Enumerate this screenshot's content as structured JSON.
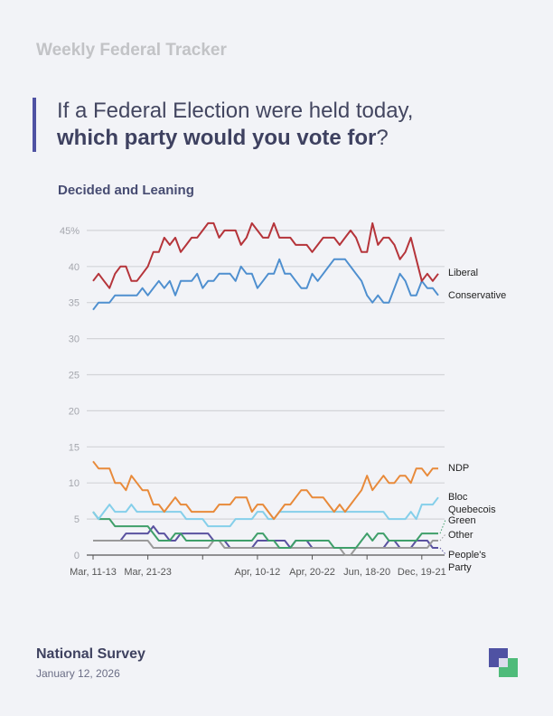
{
  "header": {
    "tracker_title": "Weekly Federal Tracker",
    "question_regular": "If a Federal Election were held today, ",
    "question_bold": "which party would you vote for",
    "question_end": "?",
    "subtitle": "Decided and Leaning"
  },
  "footer": {
    "title": "National Survey",
    "date": "January 12, 2026"
  },
  "colors": {
    "accent": "#4f52a3",
    "logo_purple": "#4f52a3",
    "logo_green": "#4fbb7a"
  },
  "chart_data": {
    "type": "line",
    "title": "Decided and Leaning",
    "ylim": [
      0,
      45
    ],
    "yticks": [
      "0",
      "5",
      "10",
      "15",
      "20",
      "25",
      "30",
      "35",
      "40",
      "45%"
    ],
    "grid": true,
    "x_tick_indices": [
      0,
      10,
      20,
      30,
      40,
      50,
      60
    ],
    "x_tick_labels": [
      "Mar, 11-13",
      "Mar, 21-23",
      "",
      "Apr, 10-12",
      "Apr, 20-22",
      "Jun, 18-20",
      "Dec, 19-21"
    ],
    "legend_placement": "right-end-labels",
    "series": [
      {
        "name": "Liberal",
        "label_lines": [
          "Liberal"
        ],
        "color": "#b5343a",
        "values": [
          38,
          39,
          38,
          37,
          39,
          40,
          40,
          38,
          38,
          39,
          40,
          42,
          42,
          44,
          43,
          44,
          42,
          43,
          44,
          44,
          45,
          46,
          46,
          44,
          45,
          45,
          45,
          43,
          44,
          46,
          45,
          44,
          44,
          46,
          44,
          44,
          44,
          43,
          43,
          43,
          42,
          43,
          44,
          44,
          44,
          43,
          44,
          45,
          44,
          42,
          42,
          46,
          43,
          44,
          44,
          43,
          41,
          42,
          44,
          41,
          38,
          39,
          38,
          39
        ]
      },
      {
        "name": "Conservative",
        "label_lines": [
          "Conservative"
        ],
        "color": "#4e8fcf",
        "values": [
          34,
          35,
          35,
          35,
          36,
          36,
          36,
          36,
          36,
          37,
          36,
          37,
          38,
          37,
          38,
          36,
          38,
          38,
          38,
          39,
          37,
          38,
          38,
          39,
          39,
          39,
          38,
          40,
          39,
          39,
          37,
          38,
          39,
          39,
          41,
          39,
          39,
          38,
          37,
          37,
          39,
          38,
          39,
          40,
          41,
          41,
          41,
          40,
          39,
          38,
          36,
          35,
          36,
          35,
          35,
          37,
          39,
          38,
          36,
          36,
          38,
          37,
          37,
          36
        ]
      },
      {
        "name": "NDP",
        "label_lines": [
          "NDP"
        ],
        "color": "#e88a3a",
        "values": [
          13,
          12,
          12,
          12,
          10,
          10,
          9,
          11,
          10,
          9,
          9,
          7,
          7,
          6,
          7,
          8,
          7,
          7,
          6,
          6,
          6,
          6,
          6,
          7,
          7,
          7,
          8,
          8,
          8,
          6,
          7,
          7,
          6,
          5,
          6,
          7,
          7,
          8,
          9,
          9,
          8,
          8,
          8,
          7,
          6,
          7,
          6,
          7,
          8,
          9,
          11,
          9,
          10,
          11,
          10,
          10,
          11,
          11,
          10,
          12,
          12,
          11,
          12,
          12
        ]
      },
      {
        "name": "Bloc Quebecois",
        "label_lines": [
          "Bloc",
          "Quebecois"
        ],
        "color": "#85cfea",
        "values": [
          6,
          5,
          6,
          7,
          6,
          6,
          6,
          7,
          6,
          6,
          6,
          6,
          6,
          6,
          6,
          6,
          6,
          5,
          5,
          5,
          5,
          4,
          4,
          4,
          4,
          4,
          5,
          5,
          5,
          5,
          6,
          6,
          5,
          5,
          6,
          6,
          6,
          6,
          6,
          6,
          6,
          6,
          6,
          6,
          6,
          6,
          6,
          6,
          6,
          6,
          6,
          6,
          6,
          6,
          5,
          5,
          5,
          5,
          6,
          5,
          7,
          7,
          7,
          8
        ]
      },
      {
        "name": "Green",
        "label_lines": [
          "Green"
        ],
        "color": "#3f9f6a",
        "values": [
          6,
          5,
          5,
          5,
          4,
          4,
          4,
          4,
          4,
          4,
          4,
          3,
          2,
          2,
          2,
          3,
          3,
          2,
          2,
          2,
          2,
          2,
          2,
          2,
          2,
          2,
          2,
          2,
          2,
          2,
          3,
          3,
          2,
          2,
          1,
          1,
          1,
          2,
          2,
          2,
          2,
          2,
          2,
          2,
          1,
          1,
          1,
          1,
          1,
          2,
          3,
          2,
          3,
          3,
          2,
          2,
          2,
          2,
          2,
          2,
          3,
          3,
          3,
          3
        ]
      },
      {
        "name": "Other",
        "label_lines": [
          "Other"
        ],
        "color": "#9a9a9a",
        "values": [
          2,
          2,
          2,
          2,
          2,
          2,
          2,
          2,
          2,
          2,
          2,
          1,
          1,
          1,
          1,
          1,
          1,
          1,
          1,
          1,
          1,
          1,
          2,
          2,
          1,
          1,
          1,
          1,
          1,
          1,
          1,
          1,
          1,
          1,
          1,
          1,
          1,
          1,
          1,
          1,
          1,
          1,
          1,
          1,
          1,
          1,
          0,
          0,
          1,
          1,
          1,
          1,
          1,
          1,
          1,
          1,
          1,
          1,
          1,
          1,
          1,
          1,
          2,
          2
        ]
      },
      {
        "name": "People's Party",
        "label_lines": [
          "People's",
          "Party"
        ],
        "color": "#5a52a0",
        "values": [
          2,
          2,
          2,
          2,
          2,
          2,
          3,
          3,
          3,
          3,
          3,
          4,
          3,
          3,
          2,
          2,
          3,
          3,
          3,
          3,
          3,
          3,
          2,
          2,
          2,
          1,
          1,
          1,
          1,
          1,
          2,
          2,
          2,
          2,
          2,
          2,
          1,
          2,
          2,
          2,
          1,
          1,
          1,
          1,
          1,
          1,
          1,
          1,
          1,
          1,
          1,
          1,
          1,
          1,
          2,
          2,
          1,
          1,
          1,
          2,
          2,
          2,
          1,
          1
        ]
      }
    ]
  }
}
